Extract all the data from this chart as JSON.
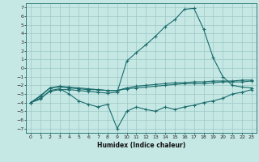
{
  "xlabel": "Humidex (Indice chaleur)",
  "background_color": "#c5e8e5",
  "grid_color": "#9dc8c5",
  "line_color": "#1a6b6b",
  "xlim": [
    -0.5,
    23.5
  ],
  "ylim": [
    -7.5,
    7.5
  ],
  "xticks": [
    0,
    1,
    2,
    3,
    4,
    5,
    6,
    7,
    8,
    9,
    10,
    11,
    12,
    13,
    14,
    15,
    16,
    17,
    18,
    19,
    20,
    21,
    22,
    23
  ],
  "yticks": [
    -7,
    -6,
    -5,
    -4,
    -3,
    -2,
    -1,
    0,
    1,
    2,
    3,
    4,
    5,
    6,
    7
  ],
  "line1_x": [
    0,
    1,
    2,
    3,
    4,
    5,
    6,
    7,
    8,
    9,
    10,
    11,
    12,
    13,
    14,
    15,
    16,
    17,
    18,
    19,
    20,
    21,
    22,
    23
  ],
  "line1_y": [
    -4.0,
    -3.5,
    -2.7,
    -2.5,
    -2.5,
    -2.6,
    -2.7,
    -2.8,
    -2.9,
    -2.8,
    0.8,
    1.8,
    2.7,
    3.7,
    4.8,
    5.6,
    6.8,
    6.9,
    4.5,
    1.2,
    -1.0,
    -2.0,
    -2.2,
    -2.3
  ],
  "line2_x": [
    0,
    1,
    2,
    3,
    4,
    5,
    6,
    7,
    8,
    9,
    10,
    11,
    12,
    13,
    14,
    15,
    16,
    17,
    18,
    19,
    20,
    21,
    22,
    23
  ],
  "line2_y": [
    -4.0,
    -3.6,
    -2.6,
    -2.4,
    -3.0,
    -3.8,
    -4.2,
    -4.5,
    -4.2,
    -7.0,
    -5.0,
    -4.5,
    -4.8,
    -5.0,
    -4.5,
    -4.8,
    -4.5,
    -4.3,
    -4.0,
    -3.8,
    -3.5,
    -3.0,
    -2.8,
    -2.5
  ],
  "line3_x": [
    0,
    1,
    2,
    3,
    4,
    5,
    6,
    7,
    8,
    9,
    10,
    11,
    12,
    13,
    14,
    15,
    16,
    17,
    18,
    19,
    20,
    21,
    22,
    23
  ],
  "line3_y": [
    -4.0,
    -3.3,
    -2.3,
    -2.2,
    -2.3,
    -2.4,
    -2.5,
    -2.5,
    -2.6,
    -2.6,
    -2.4,
    -2.3,
    -2.2,
    -2.1,
    -2.0,
    -1.9,
    -1.8,
    -1.8,
    -1.8,
    -1.7,
    -1.6,
    -1.6,
    -1.6,
    -1.5
  ],
  "line4_x": [
    0,
    1,
    2,
    3,
    4,
    5,
    6,
    7,
    8,
    9,
    10,
    11,
    12,
    13,
    14,
    15,
    16,
    17,
    18,
    19,
    20,
    21,
    22,
    23
  ],
  "line4_y": [
    -4.0,
    -3.2,
    -2.3,
    -2.1,
    -2.2,
    -2.3,
    -2.4,
    -2.5,
    -2.6,
    -2.6,
    -2.3,
    -2.1,
    -2.0,
    -1.9,
    -1.8,
    -1.7,
    -1.7,
    -1.6,
    -1.6,
    -1.5,
    -1.5,
    -1.5,
    -1.4,
    -1.4
  ]
}
